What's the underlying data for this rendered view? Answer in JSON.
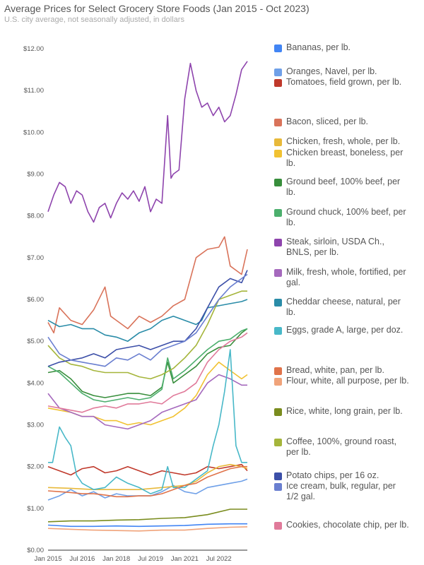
{
  "chart_data": {
    "type": "line",
    "title": "Average Prices for Select Grocery Store Foods (Jan 2015 - Oct 2023)",
    "subtitle": "U.S. city average, not seasonally adjusted, in dollars",
    "x_tick_labels": [
      "Jan 2015",
      "Jul 2016",
      "Jan 2018",
      "Jul 2019",
      "Jan 2021",
      "Jul 2022"
    ],
    "x_tick_values": [
      2015.0,
      2016.5,
      2018.0,
      2019.5,
      2021.0,
      2022.5
    ],
    "xlim": [
      2015.0,
      2023.75
    ],
    "ylim": [
      0,
      12
    ],
    "y_tick_labels": [
      "$0.00",
      "$1.00",
      "$2.00",
      "$3.00",
      "$4.00",
      "$5.00",
      "$6.00",
      "$7.00",
      "$8.00",
      "$9.00",
      "$10.00",
      "$11.00",
      "$12.00"
    ],
    "y_tick_values": [
      0,
      1,
      2,
      3,
      4,
      5,
      6,
      7,
      8,
      9,
      10,
      11,
      12
    ],
    "grid": false,
    "legend_position": "right",
    "series": [
      {
        "name": "Bananas, per lb.",
        "color": "#4285f4",
        "x": [
          2015,
          2016,
          2017,
          2018,
          2019,
          2020,
          2021,
          2022,
          2023,
          2023.75
        ],
        "y": [
          0.6,
          0.57,
          0.57,
          0.58,
          0.57,
          0.58,
          0.59,
          0.62,
          0.63,
          0.63
        ]
      },
      {
        "name": "Oranges, Navel, per lb.",
        "color": "#6fa0e8",
        "x": [
          2015,
          2015.5,
          2016,
          2016.5,
          2017,
          2017.5,
          2018,
          2018.5,
          2019,
          2019.5,
          2020,
          2020.5,
          2021,
          2021.5,
          2022,
          2022.5,
          2023,
          2023.5,
          2023.75
        ],
        "y": [
          1.2,
          1.3,
          1.45,
          1.3,
          1.4,
          1.25,
          1.35,
          1.3,
          1.3,
          1.3,
          1.4,
          1.55,
          1.4,
          1.35,
          1.5,
          1.55,
          1.6,
          1.65,
          1.7
        ]
      },
      {
        "name": "Tomatoes, field grown, per lb.",
        "color": "#c0392b",
        "x": [
          2015,
          2015.5,
          2016,
          2016.5,
          2017,
          2017.5,
          2018,
          2018.5,
          2019,
          2019.5,
          2020,
          2020.5,
          2021,
          2021.5,
          2022,
          2022.5,
          2023,
          2023.5,
          2023.75
        ],
        "y": [
          2.0,
          1.9,
          1.8,
          1.95,
          2.0,
          1.85,
          1.9,
          2.0,
          1.9,
          1.8,
          1.9,
          1.85,
          1.8,
          1.85,
          2.0,
          1.95,
          2.0,
          2.05,
          1.9
        ]
      },
      {
        "name": "Bacon, sliced, per lb.",
        "color": "#d9735a",
        "x": [
          2015,
          2015.25,
          2015.5,
          2016,
          2016.5,
          2017,
          2017.5,
          2017.75,
          2018,
          2018.5,
          2019,
          2019.5,
          2020,
          2020.5,
          2021,
          2021.5,
          2022,
          2022.5,
          2022.75,
          2023,
          2023.5,
          2023.75
        ],
        "y": [
          5.45,
          5.2,
          5.8,
          5.5,
          5.4,
          5.75,
          6.3,
          5.6,
          5.5,
          5.3,
          5.6,
          5.45,
          5.6,
          5.85,
          6.0,
          7.0,
          7.2,
          7.25,
          7.5,
          6.8,
          6.6,
          7.2
        ]
      },
      {
        "name": "Chicken, fresh, whole, per lb.",
        "color": "#e8b93a",
        "x": [
          2015,
          2016,
          2017,
          2018,
          2019,
          2020,
          2021,
          2021.5,
          2022,
          2022.5,
          2023,
          2023.5,
          2023.75
        ],
        "y": [
          1.5,
          1.48,
          1.45,
          1.45,
          1.45,
          1.5,
          1.55,
          1.65,
          1.85,
          2.0,
          2.05,
          2.0,
          1.95
        ]
      },
      {
        "name": "Chicken breast, boneless, per lb.",
        "color": "#f1c232",
        "x": [
          2015,
          2015.5,
          2016,
          2016.5,
          2017,
          2017.5,
          2018,
          2018.5,
          2019,
          2019.5,
          2020,
          2020.5,
          2021,
          2021.5,
          2022,
          2022.5,
          2023,
          2023.5,
          2023.75
        ],
        "y": [
          3.4,
          3.35,
          3.3,
          3.2,
          3.2,
          3.1,
          3.1,
          3.0,
          3.05,
          3.0,
          3.1,
          3.2,
          3.4,
          3.7,
          4.2,
          4.5,
          4.3,
          4.1,
          4.2
        ]
      },
      {
        "name": "Ground beef, 100% beef, per lb.",
        "color": "#388e3c",
        "x": [
          2015,
          2015.5,
          2016,
          2016.5,
          2017,
          2017.5,
          2018,
          2018.5,
          2019,
          2019.5,
          2020,
          2020.25,
          2020.5,
          2021,
          2021.5,
          2022,
          2022.5,
          2023,
          2023.5,
          2023.75
        ],
        "y": [
          4.25,
          4.3,
          4.1,
          3.8,
          3.7,
          3.65,
          3.7,
          3.75,
          3.75,
          3.7,
          3.9,
          4.5,
          4.0,
          4.2,
          4.4,
          4.7,
          4.85,
          4.9,
          5.2,
          5.3
        ]
      },
      {
        "name": "Ground chuck, 100% beef, per lb.",
        "color": "#4caf6d",
        "x": [
          2015,
          2015.5,
          2016,
          2016.5,
          2017,
          2017.5,
          2018,
          2018.5,
          2019,
          2019.5,
          2020,
          2020.25,
          2020.5,
          2021,
          2021.5,
          2022,
          2022.5,
          2023,
          2023.5,
          2023.75
        ],
        "y": [
          4.4,
          4.25,
          4.0,
          3.75,
          3.6,
          3.55,
          3.6,
          3.65,
          3.6,
          3.65,
          3.85,
          4.6,
          4.1,
          4.3,
          4.55,
          4.8,
          5.0,
          5.05,
          5.25,
          5.3
        ]
      },
      {
        "name": "Steak, sirloin, USDA Ch., BNLS, per lb.",
        "color": "#8e44ad",
        "x": [
          2015,
          2015.25,
          2015.5,
          2015.75,
          2016,
          2016.25,
          2016.5,
          2016.75,
          2017,
          2017.25,
          2017.5,
          2017.75,
          2018,
          2018.25,
          2018.5,
          2018.75,
          2019,
          2019.25,
          2019.5,
          2019.75,
          2020,
          2020.25,
          2020.4,
          2020.5,
          2020.75,
          2021,
          2021.25,
          2021.5,
          2021.75,
          2022,
          2022.25,
          2022.5,
          2022.75,
          2023,
          2023.25,
          2023.5,
          2023.75
        ],
        "y": [
          8.1,
          8.5,
          8.8,
          8.7,
          8.3,
          8.6,
          8.5,
          8.1,
          7.85,
          8.2,
          8.3,
          7.95,
          8.3,
          8.55,
          8.4,
          8.6,
          8.35,
          8.7,
          8.1,
          8.4,
          8.3,
          10.4,
          8.9,
          9.0,
          9.1,
          10.8,
          11.65,
          11.0,
          10.6,
          10.7,
          10.4,
          10.6,
          10.25,
          10.4,
          10.9,
          11.5,
          11.7
        ]
      },
      {
        "name": "Milk, fresh, whole, fortified, per gal.",
        "color": "#a569bd",
        "x": [
          2015,
          2015.5,
          2016,
          2016.5,
          2017,
          2017.5,
          2018,
          2018.5,
          2019,
          2019.5,
          2020,
          2020.5,
          2021,
          2021.5,
          2022,
          2022.5,
          2023,
          2023.5,
          2023.75
        ],
        "y": [
          3.75,
          3.4,
          3.3,
          3.2,
          3.2,
          3.0,
          2.95,
          2.9,
          3.0,
          3.1,
          3.3,
          3.4,
          3.5,
          3.6,
          4.0,
          4.2,
          4.1,
          3.95,
          3.95
        ]
      },
      {
        "name": "Cheddar cheese, natural, per lb.",
        "color": "#2a8ca8",
        "x": [
          2015,
          2015.5,
          2016,
          2016.5,
          2017,
          2017.5,
          2018,
          2018.5,
          2019,
          2019.5,
          2020,
          2020.5,
          2021,
          2021.5,
          2021.75,
          2022,
          2022.5,
          2023,
          2023.5,
          2023.75
        ],
        "y": [
          5.5,
          5.35,
          5.4,
          5.3,
          5.3,
          5.15,
          5.1,
          5.0,
          5.2,
          5.3,
          5.5,
          5.6,
          5.5,
          5.4,
          5.5,
          5.8,
          5.85,
          5.9,
          5.95,
          6.0
        ]
      },
      {
        "name": "Eggs, grade A, large, per doz.",
        "color": "#48b8c8",
        "x": [
          2015,
          2015.2,
          2015.5,
          2015.75,
          2016,
          2016.25,
          2016.5,
          2017,
          2017.5,
          2018,
          2018.5,
          2019,
          2019.5,
          2020,
          2020.25,
          2020.5,
          2021,
          2021.5,
          2022,
          2022.25,
          2022.5,
          2022.75,
          2023,
          2023.25,
          2023.5,
          2023.75
        ],
        "y": [
          2.1,
          2.1,
          2.95,
          2.7,
          2.5,
          1.8,
          1.6,
          1.45,
          1.5,
          1.75,
          1.6,
          1.5,
          1.35,
          1.45,
          2.0,
          1.5,
          1.5,
          1.7,
          1.9,
          2.5,
          3.0,
          3.8,
          4.8,
          2.5,
          2.1,
          2.1
        ]
      },
      {
        "name": "Bread, white, pan, per lb.",
        "color": "#e0734a",
        "x": [
          2015,
          2015.5,
          2016,
          2016.5,
          2017,
          2017.5,
          2018,
          2018.5,
          2019,
          2019.5,
          2020,
          2020.5,
          2021,
          2021.5,
          2022,
          2022.5,
          2023,
          2023.5,
          2023.75
        ],
        "y": [
          1.42,
          1.4,
          1.38,
          1.35,
          1.35,
          1.32,
          1.28,
          1.28,
          1.3,
          1.3,
          1.35,
          1.45,
          1.55,
          1.6,
          1.75,
          1.85,
          1.95,
          2.0,
          2.0
        ]
      },
      {
        "name": "Flour, white, all purpose, per lb.",
        "color": "#f0a37a",
        "x": [
          2015,
          2016,
          2017,
          2018,
          2019,
          2020,
          2021,
          2022,
          2023,
          2023.75
        ],
        "y": [
          0.52,
          0.5,
          0.48,
          0.47,
          0.46,
          0.48,
          0.48,
          0.52,
          0.55,
          0.56
        ]
      },
      {
        "name": "Rice, white, long grain, per lb.",
        "color": "#7a8c1e",
        "x": [
          2015,
          2016,
          2017,
          2018,
          2019,
          2020,
          2021,
          2022,
          2023,
          2023.75
        ],
        "y": [
          0.68,
          0.7,
          0.7,
          0.72,
          0.73,
          0.76,
          0.78,
          0.85,
          0.98,
          0.98
        ]
      },
      {
        "name": "Coffee, 100%, ground roast, per lb.",
        "color": "#a5b53b",
        "x": [
          2015,
          2015.5,
          2016,
          2016.5,
          2017,
          2017.5,
          2018,
          2018.5,
          2019,
          2019.5,
          2020,
          2020.5,
          2021,
          2021.5,
          2022,
          2022.5,
          2023,
          2023.5,
          2023.75
        ],
        "y": [
          4.9,
          4.6,
          4.45,
          4.4,
          4.3,
          4.25,
          4.25,
          4.25,
          4.15,
          4.1,
          4.2,
          4.35,
          4.6,
          4.9,
          5.4,
          6.0,
          6.1,
          6.2,
          6.2
        ]
      },
      {
        "name": "Potato chips, per 16 oz.",
        "color": "#3c4fa8",
        "x": [
          2015,
          2015.5,
          2016,
          2016.5,
          2017,
          2017.5,
          2018,
          2018.5,
          2019,
          2019.5,
          2020,
          2020.5,
          2021,
          2021.5,
          2022,
          2022.5,
          2023,
          2023.5,
          2023.75
        ],
        "y": [
          4.4,
          4.5,
          4.55,
          4.6,
          4.7,
          4.6,
          4.8,
          4.85,
          4.9,
          4.8,
          4.9,
          5.0,
          5.0,
          5.3,
          5.8,
          6.3,
          6.5,
          6.4,
          6.7
        ]
      },
      {
        "name": "Ice cream, bulk, regular, per 1/2 gal.",
        "color": "#6a7fd0",
        "x": [
          2015,
          2015.5,
          2016,
          2016.5,
          2017,
          2017.5,
          2018,
          2018.5,
          2019,
          2019.5,
          2020,
          2020.5,
          2021,
          2021.5,
          2022,
          2022.5,
          2023,
          2023.5,
          2023.75
        ],
        "y": [
          5.1,
          4.7,
          4.55,
          4.5,
          4.45,
          4.4,
          4.6,
          4.55,
          4.7,
          4.55,
          4.8,
          4.9,
          5.0,
          5.2,
          5.6,
          6.0,
          6.3,
          6.5,
          6.6
        ]
      },
      {
        "name": "Cookies, chocolate chip, per lb.",
        "color": "#e07a9a",
        "x": [
          2015,
          2015.5,
          2016,
          2016.5,
          2017,
          2017.5,
          2018,
          2018.5,
          2019,
          2019.5,
          2020,
          2020.5,
          2021,
          2021.5,
          2022,
          2022.5,
          2023,
          2023.5,
          2023.75
        ],
        "y": [
          3.45,
          3.4,
          3.35,
          3.3,
          3.4,
          3.45,
          3.4,
          3.5,
          3.5,
          3.55,
          3.5,
          3.7,
          3.8,
          4.0,
          4.5,
          4.8,
          5.0,
          5.1,
          5.2
        ]
      }
    ]
  }
}
